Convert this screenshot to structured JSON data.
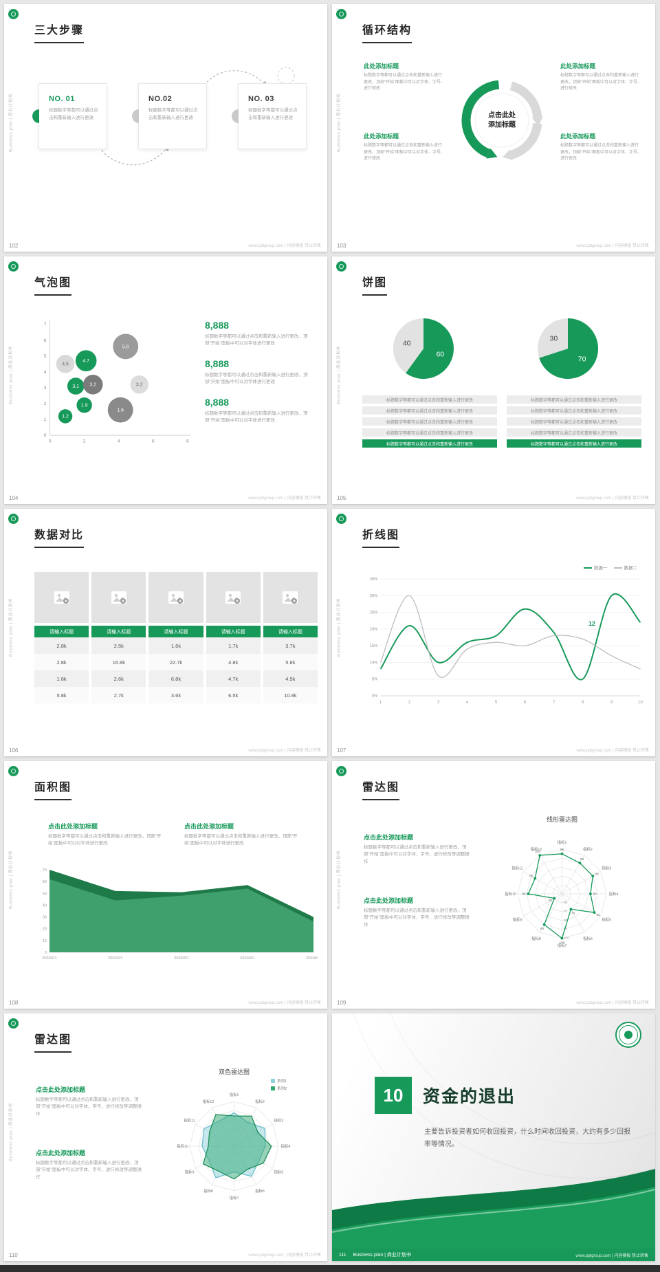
{
  "ui": {
    "sidebar_text": "Business plan | 商业计划书",
    "watermark": "www.pptgroup.com | 内容模板 禁止转售",
    "brand_green": "#17995a"
  },
  "slides": [
    {
      "page_no": "102",
      "title": "三大步骤",
      "steps": [
        {
          "no": "NO. 01",
          "text": "标题数字等都可以通过点击和重新输入进行更改"
        },
        {
          "no": "NO.02",
          "text": "标题数字等都可以通过点击和重新输入进行更改"
        },
        {
          "no": "NO. 03",
          "text": "标题数字等都可以通过点击和重新输入进行更改"
        }
      ]
    },
    {
      "page_no": "103",
      "title": "循环结构",
      "center_label": "点击此处添加标题",
      "items": [
        {
          "heading": "此处添加标题",
          "body": "标题数字等都可以通过点击和重新输入进行更改，顶部“开始”面板中可以对字体、字号、进行修改"
        },
        {
          "heading": "此处添加标题",
          "body": "标题数字等都可以通过点击和重新输入进行更改，顶部“开始”面板中可以对字体、字号、进行修改"
        },
        {
          "heading": "此处添加标题",
          "body": "标题数字等都可以通过点击和重新输入进行更改，顶部“开始”面板中可以对字体、字号、进行修改"
        },
        {
          "heading": "此处添加标题",
          "body": "标题数字等都可以通过点击和重新输入进行更改，顶部“开始”面板中可以对字体、字号、进行修改"
        }
      ]
    },
    {
      "page_no": "104",
      "title": "气泡图",
      "stats": [
        {
          "value": "8,888",
          "body": "标题数字等都可以通过点击和重新输入进行更改，顶部“开始”面板中可以对字体进行更改"
        },
        {
          "value": "8,888",
          "body": "标题数字等都可以通过点击和重新输入进行更改，顶部“开始”面板中可以对字体进行更改"
        },
        {
          "value": "8,888",
          "body": "标题数字等都可以通过点击和重新输入进行更改，顶部“开始”面板中可以对字体进行更改"
        }
      ],
      "chart_data": {
        "type": "scatter",
        "xlim": [
          0,
          8
        ],
        "ylim": [
          0,
          7
        ],
        "xticks": [
          0,
          2,
          4,
          6,
          8
        ],
        "yticks": [
          0,
          1,
          2,
          3,
          4,
          5,
          6,
          7
        ],
        "points": [
          {
            "x": 0.9,
            "y": 4.5,
            "label": "4.5",
            "r": 13,
            "color": "#d9d9d9",
            "label_color": "#666666"
          },
          {
            "x": 2.1,
            "y": 4.7,
            "label": "4.7",
            "r": 15,
            "color": "#17995a",
            "label_color": "#ffffff"
          },
          {
            "x": 4.4,
            "y": 5.6,
            "label": "5.6",
            "r": 18,
            "color": "#9b9b9b",
            "label_color": "#ffffff"
          },
          {
            "x": 1.5,
            "y": 3.1,
            "label": "3.1",
            "r": 12,
            "color": "#17995a",
            "label_color": "#ffffff"
          },
          {
            "x": 2.5,
            "y": 3.2,
            "label": "3.2",
            "r": 14,
            "color": "#7b7b7b",
            "label_color": "#ffffff"
          },
          {
            "x": 5.2,
            "y": 3.2,
            "label": "3.2",
            "r": 13,
            "color": "#dcdcdc",
            "label_color": "#666666"
          },
          {
            "x": 2.0,
            "y": 1.9,
            "label": "1.9",
            "r": 11,
            "color": "#17995a",
            "label_color": "#ffffff"
          },
          {
            "x": 0.9,
            "y": 1.2,
            "label": "1.2",
            "r": 10,
            "color": "#17995a",
            "label_color": "#ffffff"
          },
          {
            "x": 4.1,
            "y": 1.6,
            "label": "1.6",
            "r": 18,
            "color": "#8a8a8a",
            "label_color": "#ffffff"
          }
        ]
      }
    },
    {
      "page_no": "105",
      "title": "饼图",
      "bar_text": "标题数字等都可以通过点击和重新输入进行更改",
      "chart_data": [
        {
          "type": "pie",
          "values": [
            60,
            40
          ],
          "labels": [
            "60",
            "40"
          ],
          "colors": [
            "#17995a",
            "#e2e2e2"
          ],
          "label_colors": [
            "#ffffff",
            "#444444"
          ]
        },
        {
          "type": "pie",
          "values": [
            70,
            30
          ],
          "labels": [
            "70",
            "30"
          ],
          "colors": [
            "#17995a",
            "#e2e2e2"
          ],
          "label_colors": [
            "#ffffff",
            "#444444"
          ]
        }
      ]
    },
    {
      "page_no": "106",
      "title": "数据对比",
      "table": {
        "header": "请输入标题",
        "rows": [
          [
            "2.8k",
            "2.5k",
            "1.6k",
            "1.7k",
            "3.7k"
          ],
          [
            "2.8k",
            "16.8k",
            "22.7k",
            "4.8k",
            "5.8k"
          ],
          [
            "1.6k",
            "2.6k",
            "6.8k",
            "4.7k",
            "4.5k"
          ],
          [
            "5.8k",
            "2.7k",
            "3.6k",
            "6.5k",
            "10.8k"
          ]
        ]
      }
    },
    {
      "page_no": "107",
      "title": "折线图",
      "chart_data": {
        "type": "line",
        "x": [
          1,
          2,
          3,
          4,
          5,
          6,
          7,
          8,
          9,
          10
        ],
        "ylim": [
          0,
          35
        ],
        "yticks": [
          "0%",
          "5%",
          "10%",
          "15%",
          "20%",
          "25%",
          "30%",
          "35%"
        ],
        "series": [
          {
            "name": "数据一",
            "color": "#17995a",
            "width": 2,
            "values": [
              8,
              21,
              10,
              16,
              18,
              26,
              19,
              5,
              30,
              22
            ]
          },
          {
            "name": "数据二",
            "color": "#bdbdbd",
            "width": 1.3,
            "values": [
              10,
              30,
              6,
              14,
              16,
              15,
              18,
              17,
              12,
              8
            ]
          }
        ],
        "annotation": {
          "text": "12",
          "x": 8.2,
          "y": 21
        }
      }
    },
    {
      "page_no": "108",
      "title": "面积图",
      "blocks": [
        {
          "heading": "点击此处添加标题",
          "body": "标题数字等都可以通过点击和重新输入进行更改，顶部“开始”面板中可以对字体进行更改"
        },
        {
          "heading": "点击此处添加标题",
          "body": "标题数字等都可以通过点击和重新输入进行更改，顶部“开始”面板中可以对字体进行更改"
        }
      ],
      "chart_data": {
        "type": "area",
        "x": [
          "2020/1/1",
          "2020/2/1",
          "2020/3/1",
          "2020/4/1",
          "2020/5/1"
        ],
        "ylim": [
          0,
          70
        ],
        "yticks": [
          0,
          10,
          20,
          30,
          40,
          50,
          60,
          70
        ],
        "series": [
          {
            "color": "#1f7a4a",
            "values": [
              70,
              52,
              51,
              57,
              30
            ]
          },
          {
            "color": "#3fa06e",
            "values": [
              62,
              44,
              48,
              54,
              26
            ]
          }
        ]
      }
    },
    {
      "page_no": "109",
      "title": "雷达图",
      "blocks": [
        {
          "heading": "点击此处添加标题",
          "body": "标题数字等都可以通过点击和重新输入进行更改，顶部“开始”面板中可以对字体、字号、进行修改等调整操作"
        },
        {
          "heading": "点击此处添加标题",
          "body": "标题数字等都可以通过点击和重新输入进行更改，顶部“开始”面板中可以对字体、字号、进行修改等调整操作"
        }
      ],
      "chart_data": {
        "type": "radar",
        "title": "线形雷达图",
        "axes": [
          "指标1",
          "指标2",
          "指标3",
          "指标4",
          "指标5",
          "指标6",
          "指标7",
          "指标8",
          "指标9",
          "指标10",
          "指标11",
          "指标12"
        ],
        "vmin": 50,
        "vmax": 100,
        "rings": [
          60,
          70,
          80,
          90,
          100
        ],
        "ring_labels": true,
        "series": [
          {
            "color": "#17995a",
            "dots": true,
            "point_labels": true,
            "values": [
              95,
              90,
              90,
              82,
              92,
              70,
              100,
              90,
              60,
              88,
              85,
              100
            ]
          }
        ]
      }
    },
    {
      "page_no": "110",
      "title": "雷达图",
      "blocks": [
        {
          "heading": "点击此处添加标题",
          "body": "标题数字等都可以通过点击和重新输入进行更改，顶部“开始”面板中可以对字体、字号、进行修改等调整操作"
        },
        {
          "heading": "点击此处添加标题",
          "body": "标题数字等都可以通过点击和重新输入进行更改，顶部“开始”面板中可以对字体、字号、进行修改等调整操作"
        }
      ],
      "chart_data": {
        "type": "radar",
        "title": "双色雷达图",
        "legend": [
          "系列1",
          "系列2"
        ],
        "legend_colors": [
          "#8fd2dc",
          "#2fa874"
        ],
        "axes": [
          "指标1",
          "指标2",
          "指标3",
          "指标4",
          "指标5",
          "指标6",
          "指标7",
          "指标8",
          "指标9",
          "指标10",
          "指标11",
          "指标12"
        ],
        "vmin": 0,
        "vmax": 100,
        "rings": [
          20,
          40,
          60,
          80,
          100
        ],
        "ring_labels": false,
        "series": [
          {
            "color": "#6cbecb",
            "fill": "rgba(143,210,220,0.5)",
            "values": [
              75,
              62,
              80,
              70,
              65,
              78,
              58,
              82,
              65,
              72,
              78,
              66
            ]
          },
          {
            "color": "#1f8f5a",
            "fill": "rgba(47,168,116,0.5)",
            "values": [
              68,
              78,
              62,
              84,
              76,
              60,
              74,
              66,
              80,
              58,
              64,
              82
            ]
          }
        ]
      }
    },
    {
      "page_no": "111",
      "chapter_no": "10",
      "title": "资金的退出",
      "body": "主要告诉投资者如何收回投资，什么时间收回投资，大约有多少回报率等情况。",
      "footer_brand": "Business plan | 商业计划书"
    }
  ]
}
